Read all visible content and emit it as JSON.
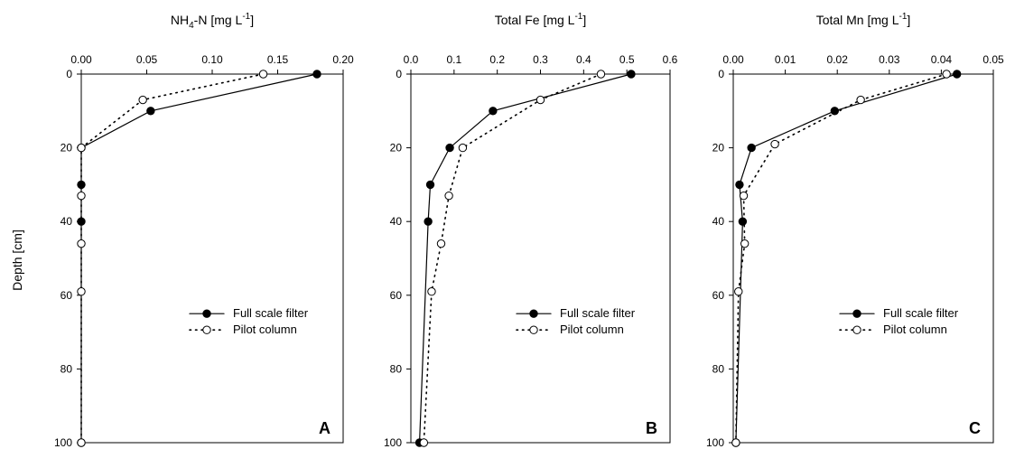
{
  "figure": {
    "ylabel": "Depth [cm]"
  },
  "chart_data": [
    {
      "type": "line",
      "panel_label": "A",
      "title_main": "NH",
      "title_sub": "4",
      "title_rest": "-N [mg L",
      "title_sup": "-1",
      "title_end": "]",
      "xlim": [
        0,
        0.2
      ],
      "x_ticks": [
        "0.00",
        "0.05",
        "0.10",
        "0.15",
        "0.20"
      ],
      "ylim": [
        0,
        100
      ],
      "y_ticks": [
        "0",
        "20",
        "40",
        "60",
        "80",
        "100"
      ],
      "legend_placement": "center-right",
      "series": [
        {
          "name": "Full scale filter",
          "style": "solid-filled",
          "points": [
            [
              0.18,
              0
            ],
            [
              0.053,
              10
            ],
            [
              0.0,
              20
            ],
            [
              0.0,
              30
            ],
            [
              0.0,
              40
            ],
            [
              0.0,
              100
            ]
          ]
        },
        {
          "name": "Pilot column",
          "style": "dotted-open",
          "points": [
            [
              0.139,
              0
            ],
            [
              0.047,
              7
            ],
            [
              0.0,
              20
            ],
            [
              0.0,
              33
            ],
            [
              0.0,
              46
            ],
            [
              0.0,
              59
            ],
            [
              0.0,
              100
            ]
          ]
        }
      ]
    },
    {
      "type": "line",
      "panel_label": "B",
      "title_main": "Total Fe [mg L",
      "title_sub": "",
      "title_rest": "",
      "title_sup": "-1",
      "title_end": "]",
      "xlim": [
        0,
        0.6
      ],
      "x_ticks": [
        "0.0",
        "0.1",
        "0.2",
        "0.3",
        "0.4",
        "0.5",
        "0.6"
      ],
      "ylim": [
        0,
        100
      ],
      "y_ticks": [
        "0",
        "20",
        "40",
        "60",
        "80",
        "100"
      ],
      "legend_placement": "center-right",
      "series": [
        {
          "name": "Full scale filter",
          "style": "solid-filled",
          "points": [
            [
              0.51,
              0
            ],
            [
              0.19,
              10
            ],
            [
              0.09,
              20
            ],
            [
              0.045,
              30
            ],
            [
              0.04,
              40
            ],
            [
              0.02,
              100
            ]
          ]
        },
        {
          "name": "Pilot column",
          "style": "dotted-open",
          "points": [
            [
              0.44,
              0
            ],
            [
              0.3,
              7
            ],
            [
              0.12,
              20
            ],
            [
              0.088,
              33
            ],
            [
              0.07,
              46
            ],
            [
              0.048,
              59
            ],
            [
              0.03,
              100
            ]
          ]
        }
      ]
    },
    {
      "type": "line",
      "panel_label": "C",
      "title_main": "Total Mn [mg L",
      "title_sub": "",
      "title_rest": "",
      "title_sup": "-1",
      "title_end": "]",
      "xlim": [
        0,
        0.05
      ],
      "x_ticks": [
        "0.00",
        "0.01",
        "0.02",
        "0.03",
        "0.04",
        "0.05"
      ],
      "ylim": [
        0,
        100
      ],
      "y_ticks": [
        "0",
        "20",
        "40",
        "60",
        "80",
        "100"
      ],
      "legend_placement": "center-right",
      "series": [
        {
          "name": "Full scale filter",
          "style": "solid-filled",
          "points": [
            [
              0.043,
              0
            ],
            [
              0.0195,
              10
            ],
            [
              0.0035,
              20
            ],
            [
              0.0012,
              30
            ],
            [
              0.0018,
              40
            ],
            [
              0.0005,
              100
            ]
          ]
        },
        {
          "name": "Pilot column",
          "style": "dotted-open",
          "points": [
            [
              0.041,
              0
            ],
            [
              0.0245,
              7
            ],
            [
              0.008,
              19
            ],
            [
              0.002,
              33
            ],
            [
              0.0022,
              46
            ],
            [
              0.001,
              59
            ],
            [
              0.0005,
              100
            ]
          ]
        }
      ]
    }
  ]
}
